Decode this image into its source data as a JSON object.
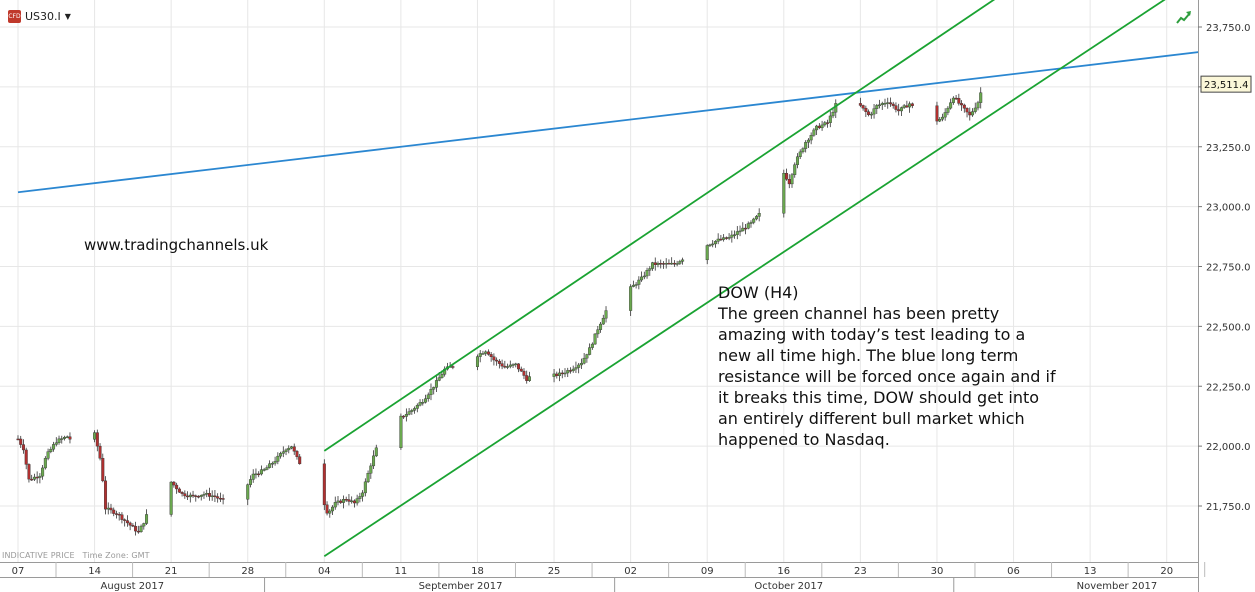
{
  "header": {
    "symbol": "US30.I",
    "badge_text": "CFD",
    "dropdown_icon": "caret-down-icon",
    "trend_icon": "trend-up-arrow-icon"
  },
  "watermark": "www.tradingchannels.uk",
  "commentary": {
    "title": "DOW (H4)",
    "body": "The green channel has been pretty amazing with today’s test leading to a new all time high. The blue long term resistance will be forced once again and if it breaks this time, DOW should get into an entirely different bull market which happened to Nasdaq."
  },
  "footer_note": {
    "indicative": "INDICATIVE PRICE",
    "timezone": "Time Zone: GMT"
  },
  "colors": {
    "channel": "#1aa332",
    "resistance": "#2b87d1",
    "bull_candle": "#6aa84f",
    "bear_candle": "#b03030",
    "grid": "#e7e7e7"
  },
  "chart_data": {
    "type": "candlestick",
    "timeframe": "H4",
    "instrument": "US30.I",
    "current_price": "23,511.4",
    "y_ticks": [
      "23,750.0",
      "23,500.0",
      "23,250.0",
      "23,000.0",
      "22,750.0",
      "22,500.0",
      "22,250.0",
      "22,000.0",
      "21,750.0"
    ],
    "y_tick_values": [
      23750,
      23500,
      23250,
      23000,
      22750,
      22500,
      22250,
      22000,
      21750
    ],
    "ylim": [
      21550,
      23850
    ],
    "x_day_labels": [
      {
        "label": "07",
        "day": 0
      },
      {
        "label": "14",
        "day": 7
      },
      {
        "label": "21",
        "day": 14
      },
      {
        "label": "28",
        "day": 21
      },
      {
        "label": "04",
        "day": 28
      },
      {
        "label": "11",
        "day": 35
      },
      {
        "label": "18",
        "day": 42
      },
      {
        "label": "25",
        "day": 49
      },
      {
        "label": "02",
        "day": 56
      },
      {
        "label": "09",
        "day": 63
      },
      {
        "label": "16",
        "day": 70
      },
      {
        "label": "23",
        "day": 77
      },
      {
        "label": "30",
        "day": 84
      },
      {
        "label": "06",
        "day": 91
      },
      {
        "label": "13",
        "day": 98
      },
      {
        "label": "20",
        "day": 105
      }
    ],
    "x_month_labels": [
      {
        "label": "August 2017",
        "center_day": 11
      },
      {
        "label": "September 2017",
        "center_day": 41
      },
      {
        "label": "October 2017",
        "center_day": 71
      },
      {
        "label": "November 2017",
        "center_day": 101
      }
    ],
    "price_path": [
      [
        0,
        22030
      ],
      [
        0.5,
        21990
      ],
      [
        1,
        21860
      ],
      [
        2,
        21880
      ],
      [
        2.6,
        21960
      ],
      [
        3.5,
        22020
      ],
      [
        4.5,
        22040
      ],
      [
        5.5,
        22000
      ],
      [
        6.2,
        22060
      ],
      [
        7,
        22050
      ],
      [
        7.6,
        21930
      ],
      [
        8,
        21740
      ],
      [
        9,
        21720
      ],
      [
        10,
        21680
      ],
      [
        11,
        21640
      ],
      [
        11.7,
        21700
      ],
      [
        12.3,
        21820
      ],
      [
        13,
        21880
      ],
      [
        14,
        21850
      ],
      [
        15,
        21800
      ],
      [
        16,
        21790
      ],
      [
        17,
        21800
      ],
      [
        18,
        21790
      ],
      [
        18.8,
        21770
      ],
      [
        19.5,
        21650
      ],
      [
        20,
        21680
      ],
      [
        20.5,
        21800
      ],
      [
        21.5,
        21880
      ],
      [
        22.5,
        21900
      ],
      [
        23.5,
        21940
      ],
      [
        24.5,
        21990
      ],
      [
        25,
        22000
      ],
      [
        25.7,
        21930
      ],
      [
        26.5,
        21930
      ],
      [
        27.3,
        21900
      ],
      [
        27.7,
        21800
      ],
      [
        28.3,
        21720
      ],
      [
        29,
        21760
      ],
      [
        30,
        21780
      ],
      [
        30.8,
        21760
      ],
      [
        31.5,
        21810
      ],
      [
        32.3,
        21930
      ],
      [
        33,
        22020
      ],
      [
        34,
        22080
      ],
      [
        35,
        22120
      ],
      [
        36,
        22150
      ],
      [
        37,
        22190
      ],
      [
        38,
        22250
      ],
      [
        39,
        22320
      ],
      [
        40,
        22340
      ],
      [
        41,
        22360
      ],
      [
        42,
        22380
      ],
      [
        42.8,
        22400
      ],
      [
        43.5,
        22360
      ],
      [
        44.5,
        22330
      ],
      [
        45.5,
        22340
      ],
      [
        46.5,
        22280
      ],
      [
        47.5,
        22310
      ],
      [
        48.5,
        22290
      ],
      [
        49.5,
        22300
      ],
      [
        50.5,
        22320
      ],
      [
        51.5,
        22350
      ],
      [
        52.3,
        22410
      ],
      [
        53,
        22490
      ],
      [
        54,
        22590
      ],
      [
        55,
        22660
      ],
      [
        56,
        22660
      ],
      [
        57,
        22700
      ],
      [
        58,
        22760
      ],
      [
        59,
        22760
      ],
      [
        60,
        22760
      ],
      [
        61,
        22790
      ],
      [
        62,
        22810
      ],
      [
        63,
        22840
      ],
      [
        64,
        22860
      ],
      [
        65,
        22870
      ],
      [
        66,
        22900
      ],
      [
        67,
        22930
      ],
      [
        68,
        22980
      ],
      [
        69,
        23050
      ],
      [
        70,
        23140
      ],
      [
        70.5,
        23100
      ],
      [
        71,
        23180
      ],
      [
        72,
        23270
      ],
      [
        73,
        23330
      ],
      [
        74,
        23350
      ],
      [
        74.8,
        23430
      ],
      [
        75.5,
        23480
      ],
      [
        76.2,
        23390
      ],
      [
        77,
        23420
      ],
      [
        77.8,
        23380
      ],
      [
        78.5,
        23420
      ],
      [
        79.5,
        23440
      ],
      [
        80.5,
        23400
      ],
      [
        81.5,
        23430
      ],
      [
        82.5,
        23380
      ],
      [
        83.5,
        23350
      ],
      [
        84.5,
        23370
      ],
      [
        85.5,
        23460
      ],
      [
        86.2,
        23420
      ],
      [
        87,
        23380
      ],
      [
        87.8,
        23440
      ],
      [
        88.2,
        23511
      ]
    ],
    "channel_upper": {
      "start": [
        28,
        21980
      ],
      "end": [
        92,
        23950
      ]
    },
    "channel_lower": {
      "start": [
        28,
        21540
      ],
      "end": [
        105,
        23870
      ]
    },
    "resistance_line": {
      "start": [
        0,
        23060
      ],
      "end": [
        118,
        23700
      ]
    }
  }
}
